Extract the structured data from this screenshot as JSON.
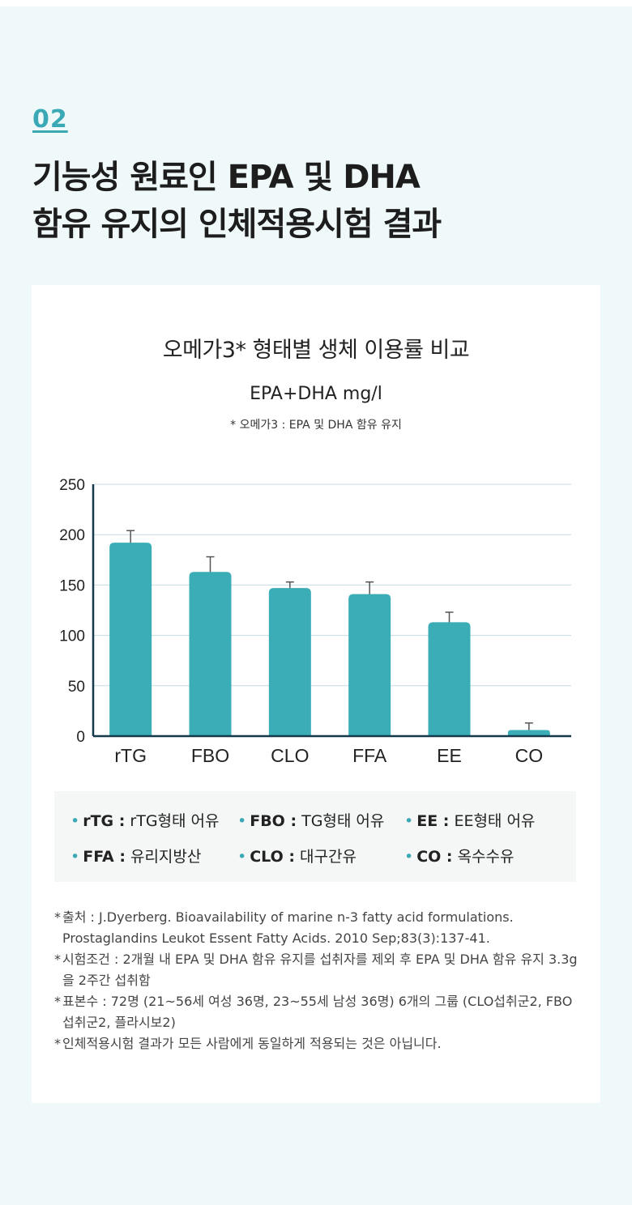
{
  "header": {
    "section_number": "02",
    "title_line1": "기능성 원료인 EPA 및 DHA",
    "title_line2": "함유 유지의 인체적용시험 결과"
  },
  "chart_text": {
    "title": "오메가3* 형태별 생체 이용률 비교",
    "unit": "EPA+DHA mg/l",
    "footnote": "* 오메가3 : EPA 및 DHA 함유 유지"
  },
  "chart_data": {
    "type": "bar",
    "categories": [
      "rTG",
      "FBO",
      "CLO",
      "FFA",
      "EE",
      "CO"
    ],
    "values": [
      192,
      163,
      147,
      141,
      113,
      6
    ],
    "error_upper": [
      204,
      178,
      153,
      153,
      123,
      13
    ],
    "y_ticks": [
      "0",
      "50",
      "100",
      "150",
      "200",
      "250"
    ],
    "ylim": [
      0,
      250
    ],
    "grid": true,
    "bar_color": "#3aadb7",
    "axis_color": "#15394a",
    "grid_color": "#c6dcdf"
  },
  "legend": {
    "dot": "•",
    "items": [
      {
        "key": "rTG :",
        "desc": "rTG형태 어유"
      },
      {
        "key": "FBO :",
        "desc": "TG형태 어유"
      },
      {
        "key": "EE :",
        "desc": "EE형태 어유"
      },
      {
        "key": "FFA :",
        "desc": "유리지방산"
      },
      {
        "key": "CLO :",
        "desc": "대구간유"
      },
      {
        "key": "CO :",
        "desc": "옥수수유"
      }
    ]
  },
  "notes": [
    {
      "star": "*",
      "text": "출처 : J.Dyerberg. Bioavailability of marine n-3 fatty acid formulations. Prostaglandins Leukot Essent Fatty Acids. 2010 Sep;83(3):137-41."
    },
    {
      "star": "*",
      "text": "시험조건 : 2개월 내 EPA 및 DHA 함유 유지를 섭취자를 제외 후 EPA 및 DHA 함유 유지 3.3g을 2주간 섭취함"
    },
    {
      "star": "*",
      "text": "표본수 : 72명 (21~56세 여성 36명, 23~55세 남성 36명) 6개의 그룹 (CLO섭취군2, FBO섭취군2, 플라시보2)"
    },
    {
      "star": "*",
      "text": "인체적용시험 결과가 모든 사람에게 동일하게 적용되는 것은 아닙니다."
    }
  ],
  "colors": {
    "accent": "#3aa9b5",
    "background": "#f0f9fa",
    "card": "#ffffff"
  }
}
